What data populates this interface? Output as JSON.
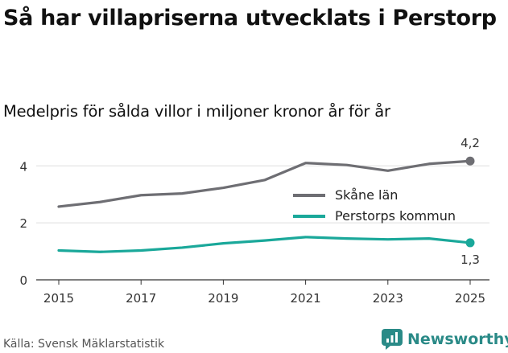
{
  "title": "Så har villapriserna utvecklats i Perstorp",
  "subtitle": "Medelpris för sålda villor i miljoner kronor år för år",
  "source": "Källa: Svensk Mäklarstatistik",
  "brand": {
    "name": "Newsworthy",
    "icon": "newsworthy-logo-icon",
    "color": "#2a8a87"
  },
  "chart_data": {
    "type": "line",
    "x": [
      2015,
      2016,
      2017,
      2018,
      2019,
      2020,
      2021,
      2022,
      2023,
      2024,
      2025
    ],
    "x_ticks": [
      "2015",
      "2017",
      "2019",
      "2021",
      "2023",
      "2025"
    ],
    "y_ticks": [
      "0",
      "2",
      "4"
    ],
    "ylim": [
      0,
      4.6
    ],
    "grid": true,
    "legend_position": "right",
    "series": [
      {
        "name": "Skåne län",
        "color": "#6e6e73",
        "values": [
          2.57,
          2.73,
          2.97,
          3.03,
          3.23,
          3.5,
          4.1,
          4.03,
          3.83,
          4.07,
          4.17
        ],
        "end_label": "4,2"
      },
      {
        "name": "Perstorps kommun",
        "color": "#1aa89a",
        "values": [
          1.03,
          0.98,
          1.03,
          1.13,
          1.28,
          1.38,
          1.5,
          1.45,
          1.42,
          1.45,
          1.3
        ],
        "end_label": "1,3"
      }
    ]
  }
}
